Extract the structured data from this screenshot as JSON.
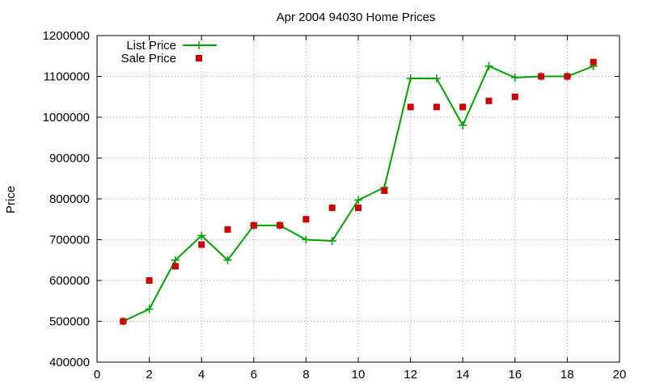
{
  "chart_data": {
    "type": "line",
    "title": "Apr 2004 94030 Home Prices",
    "xlabel": "",
    "ylabel": "Price",
    "xlim": [
      0,
      20
    ],
    "ylim": [
      400000,
      1200000
    ],
    "x_ticks": [
      0,
      2,
      4,
      6,
      8,
      10,
      12,
      14,
      16,
      18,
      20
    ],
    "y_ticks": [
      400000,
      500000,
      600000,
      700000,
      800000,
      900000,
      1000000,
      1100000,
      1200000
    ],
    "grid": true,
    "legend_position": "top-left",
    "series": [
      {
        "name": "List Price",
        "style": "line-with-plus-markers",
        "color": "#00a000",
        "x": [
          1,
          2,
          3,
          4,
          5,
          6,
          7,
          8,
          9,
          10,
          11,
          12,
          13,
          14,
          15,
          16,
          17,
          18,
          19
        ],
        "values": [
          500000,
          530000,
          650000,
          710000,
          650000,
          735000,
          735000,
          700000,
          697000,
          797000,
          828000,
          1095000,
          1095000,
          980000,
          1125000,
          1097000,
          1100000,
          1100000,
          1125000
        ]
      },
      {
        "name": "Sale Price",
        "style": "square-markers",
        "color": "#cc0000",
        "x": [
          1,
          2,
          3,
          4,
          5,
          6,
          7,
          8,
          9,
          10,
          11,
          12,
          13,
          14,
          15,
          16,
          17,
          18,
          19
        ],
        "values": [
          500000,
          600000,
          635000,
          688000,
          725000,
          735000,
          735000,
          750000,
          778000,
          778000,
          820000,
          1025000,
          1025000,
          1025000,
          1040000,
          1050000,
          1100000,
          1100000,
          1135000
        ]
      }
    ]
  }
}
